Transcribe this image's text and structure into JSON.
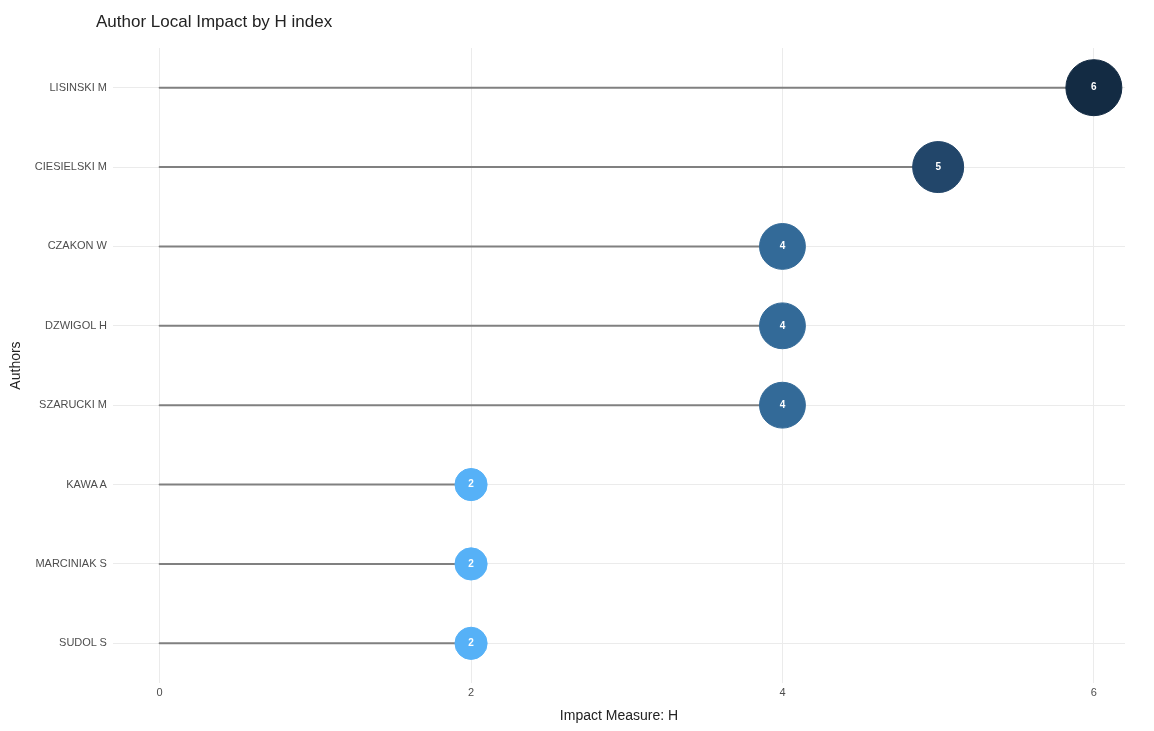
{
  "chart_data": {
    "type": "lollipop",
    "title": "Author Local Impact by H index",
    "xlabel": "Impact Measure: H",
    "ylabel": "Authors",
    "orientation": "horizontal",
    "categories": [
      "LISINSKI M",
      "CIESIELSKI M",
      "CZAKON W",
      "DZWIGOL H",
      "SZARUCKI M",
      "KAWA A",
      "MARCINIAK S",
      "SUDOL S"
    ],
    "values": [
      6,
      5,
      4,
      4,
      4,
      2,
      2,
      2
    ],
    "colors": [
      "#132b43",
      "#22466a",
      "#336a98",
      "#336a98",
      "#336a98",
      "#56b1f7",
      "#56b1f7",
      "#56b1f7"
    ],
    "sizes": [
      1,
      0.83,
      0.67,
      0.67,
      0.67,
      0.33,
      0.33,
      0.33
    ],
    "xlim": [
      -0.3,
      6.2
    ],
    "xticks": [
      0,
      2,
      4,
      6
    ],
    "grid": true,
    "data_labels": true
  }
}
